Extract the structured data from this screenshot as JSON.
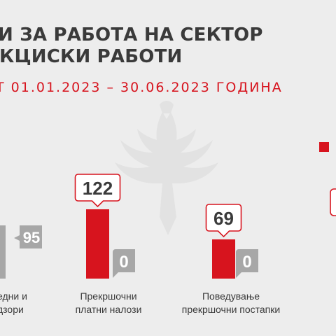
{
  "header": {
    "title_line1": "И ЗА РАБОТА НА СЕКТОР",
    "title_line2": "КЦИСКИ РАБОТИ",
    "period": "Т 01.01.2023 – 30.06.2023 ГОДИНА"
  },
  "colors": {
    "background": "#ededed",
    "text": "#3a3a3a",
    "accent": "#d7141e",
    "secondary": "#a7a7a7",
    "watermark": "#e2e2e2"
  },
  "chart_data": {
    "type": "bar",
    "categories": [
      {
        "line1": "едни и",
        "line2": "дзори"
      },
      {
        "line1": "Прекршочни",
        "line2": "платни налози"
      },
      {
        "line1": "Поведување",
        "line2": "прекршочни постапки"
      },
      {
        "line1": "",
        "line2": ""
      }
    ],
    "series": [
      {
        "color": "#d7141e",
        "values": [
          null,
          122,
          69,
          null
        ]
      },
      {
        "color": "#a7a7a7",
        "values": [
          null,
          0,
          0,
          null
        ]
      }
    ],
    "data_labels": {
      "primary": [
        "",
        "122",
        "69",
        ""
      ],
      "secondary": [
        "95",
        "0",
        "0",
        ""
      ]
    },
    "ylim": [
      0,
      140
    ],
    "grid": false
  }
}
